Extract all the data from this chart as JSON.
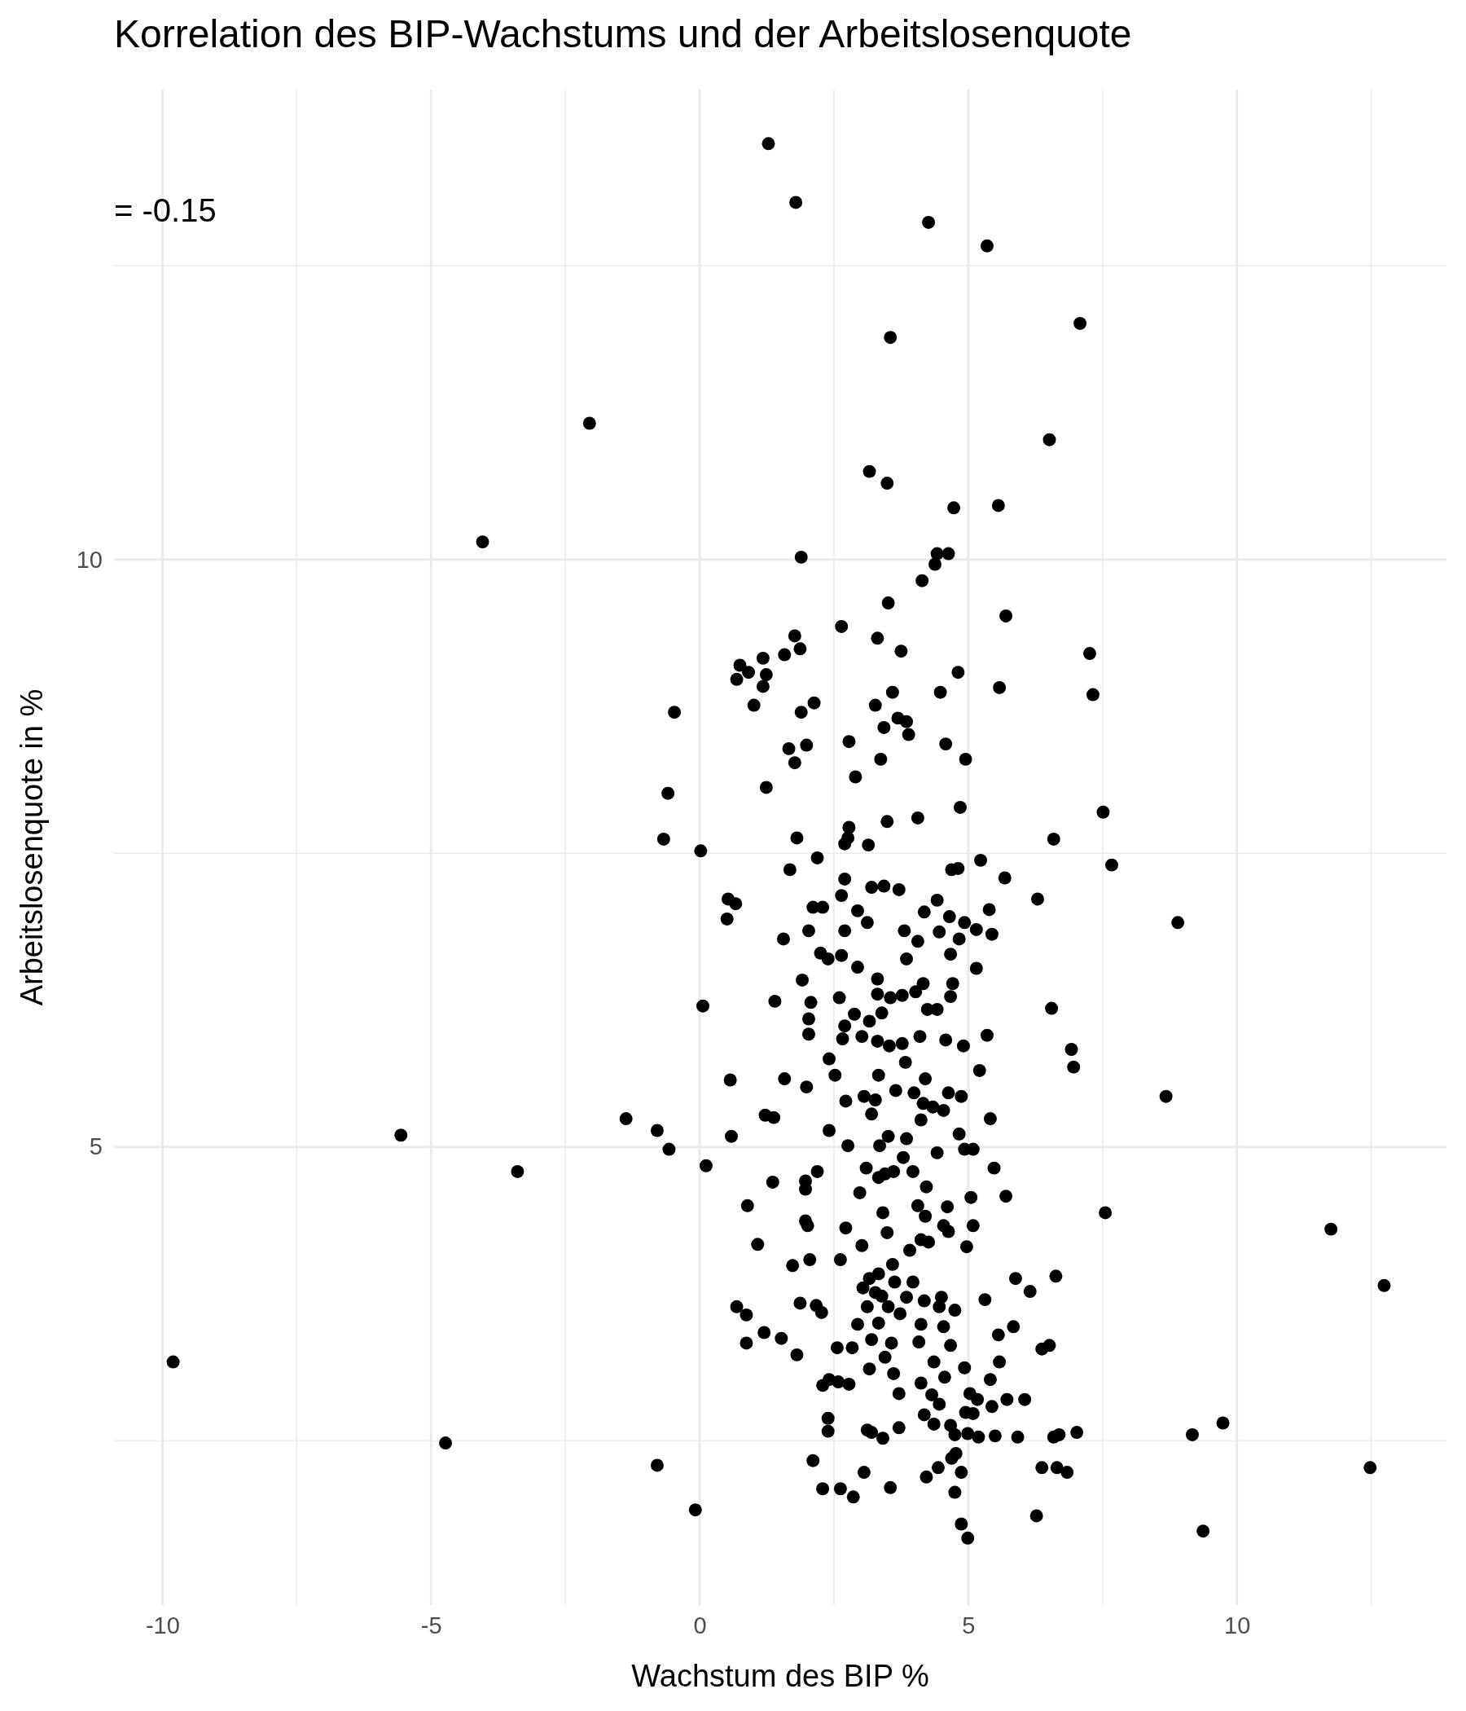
{
  "chart_data": {
    "type": "scatter",
    "title": "Korrelation des BIP-Wachstums und der Arbeitslosenquote",
    "xlabel": "Wachstum des BIP %",
    "ylabel": "Arbeitslosenquote in %",
    "annotations": [
      "= -0.15"
    ],
    "xlim": [
      -10.9,
      13.9
    ],
    "ylim": [
      1.1,
      14
    ],
    "xticks": [
      -10,
      {
        "value": -7.5,
        "label": null
      },
      -5,
      {
        "value": -2.5,
        "label": null
      },
      0,
      {
        "value": 2.5,
        "label": null
      },
      5,
      {
        "value": 7.5,
        "label": null
      },
      10,
      {
        "value": 12.5,
        "label": null
      }
    ],
    "yticks": [
      {
        "value": 2.5,
        "label": null
      },
      5,
      {
        "value": 7.5,
        "label": null
      },
      10,
      {
        "value": 12.5,
        "label": null
      }
    ],
    "grid": true,
    "marker": "circle",
    "series": [
      {
        "color": "#000000",
        "x": [
          1.28,
          1.79,
          4.26,
          5.35,
          7.08,
          3.55,
          -2.05,
          6.51,
          3.16,
          3.49,
          4.73,
          5.56,
          -4.04,
          1.89,
          4.42,
          4.63,
          4.38,
          4.14,
          3.51,
          5.7,
          2.64,
          1.77,
          3.31,
          3.75,
          7.26,
          0.75,
          1.18,
          1.58,
          1.87,
          0.91,
          0.69,
          1.24,
          4.81,
          5.58,
          7.32,
          4.48,
          3.59,
          1.18,
          1.01,
          2.13,
          3.27,
          -0.47,
          1.89,
          3.69,
          3.85,
          3.43,
          3.89,
          2.78,
          4.58,
          1.66,
          1.99,
          3.37,
          4.95,
          1.77,
          2.9,
          -0.59,
          1.24,
          4.85,
          7.51,
          4.06,
          3.49,
          2.78,
          1.81,
          -0.67,
          2.76,
          2.7,
          6.59,
          3.14,
          0.02,
          2.19,
          7.67,
          5.23,
          1.68,
          4.81,
          4.69,
          2.7,
          5.68,
          3.2,
          3.43,
          3.71,
          0.53,
          0.67,
          6.29,
          2.64,
          2.11,
          2.29,
          2.94,
          4.18,
          4.42,
          5.39,
          4.65,
          0.51,
          3.12,
          8.9,
          4.93,
          5.15,
          5.44,
          3.81,
          2.7,
          2.03,
          4.46,
          1.56,
          4.83,
          4.06,
          2.25,
          2.39,
          2.64,
          3.85,
          4.67,
          2.94,
          5.15,
          1.91,
          3.31,
          4.16,
          4.71,
          4.02,
          3.31,
          3.55,
          3.77,
          4.42,
          4.24,
          4.67,
          1.4,
          2.07,
          2.6,
          0.06,
          6.55,
          3.39,
          2.88,
          2.03,
          3.16,
          2.7,
          2.03,
          2.66,
          3.02,
          4.1,
          4.58,
          5.35,
          3.31,
          3.53,
          3.77,
          4.91,
          6.92,
          2.41,
          3.83,
          6.96,
          5.21,
          2.52,
          3.33,
          0.57,
          1.58,
          4.2,
          3.65,
          1.99,
          3.06,
          3.99,
          4.63,
          4.87,
          8.68,
          3.27,
          2.72,
          4.16,
          4.34,
          4.54,
          3.2,
          -1.37,
          1.22,
          1.38,
          5.41,
          4.12,
          -0.79,
          2.41,
          4.83,
          -5.56,
          0.59,
          3.51,
          3.85,
          2.76,
          -0.57,
          3.35,
          4.42,
          4.93,
          5.09,
          3.79,
          0.12,
          3.1,
          5.48,
          -3.39,
          3.97,
          3.61,
          2.19,
          3.33,
          3.45,
          1.97,
          1.36,
          1.97,
          4.22,
          2.98,
          5.05,
          5.7,
          0.89,
          4.06,
          4.61,
          3.41,
          4.2,
          7.55,
          1.97,
          2.01,
          5.09,
          2.72,
          4.54,
          11.75,
          3.49,
          4.63,
          4.12,
          1.08,
          4.26,
          4.97,
          3.02,
          3.91,
          2.05,
          2.62,
          1.73,
          3.59,
          3.33,
          3.16,
          5.88,
          6.63,
          3.63,
          3.97,
          12.74,
          3.04,
          6.15,
          3.27,
          3.39,
          3.85,
          4.18,
          4.5,
          5.31,
          0.69,
          1.87,
          2.17,
          3.12,
          3.51,
          4.46,
          4.75,
          0.87,
          2.27,
          3.73,
          3.33,
          2.94,
          4.12,
          4.54,
          5.84,
          5.56,
          1.2,
          1.52,
          0.87,
          3.2,
          3.57,
          4.08,
          4.67,
          2.56,
          2.84,
          6.37,
          6.51,
          1.81,
          3.45,
          4.36,
          5.58,
          -9.8,
          3.16,
          3.61,
          4.93,
          4.56,
          2.41,
          2.29,
          2.58,
          2.78,
          5.41,
          4.12,
          3.71,
          5.03,
          4.32,
          5.17,
          5.72,
          6.05,
          4.46,
          5.44,
          4.95,
          4.18,
          5.09,
          2.39,
          9.74,
          4.36,
          4.67,
          2.39,
          3.12,
          3.71,
          3.2,
          4.75,
          4.99,
          5.19,
          5.5,
          5.92,
          6.59,
          6.69,
          7.02,
          9.17,
          -4.73,
          3.41,
          4.77,
          4.69,
          2.11,
          -0.79,
          12.48,
          6.37,
          6.65,
          6.84,
          4.44,
          3.06,
          4.22,
          4.87,
          3.55,
          2.29,
          2.62,
          2.86,
          4.75,
          -0.08,
          6.27,
          9.37,
          4.87,
          4.99
        ],
        "values": [
          13.54,
          13.04,
          12.87,
          12.67,
          12.01,
          11.89,
          11.16,
          11.02,
          10.75,
          10.65,
          10.44,
          10.46,
          10.15,
          10.02,
          10.05,
          10.05,
          9.96,
          9.82,
          9.63,
          9.52,
          9.43,
          9.35,
          9.33,
          9.22,
          9.2,
          9.1,
          9.16,
          9.19,
          9.24,
          9.04,
          8.98,
          9.02,
          9.04,
          8.91,
          8.85,
          8.87,
          8.87,
          8.92,
          8.76,
          8.78,
          8.76,
          8.7,
          8.7,
          8.65,
          8.62,
          8.57,
          8.51,
          8.45,
          8.43,
          8.39,
          8.42,
          8.3,
          8.3,
          8.27,
          8.15,
          8.01,
          8.06,
          7.89,
          7.85,
          7.8,
          7.77,
          7.72,
          7.63,
          7.62,
          7.63,
          7.58,
          7.62,
          7.57,
          7.52,
          7.46,
          7.4,
          7.44,
          7.36,
          7.37,
          7.36,
          7.28,
          7.29,
          7.21,
          7.22,
          7.19,
          7.11,
          7.07,
          7.11,
          7.14,
          7.04,
          7.04,
          7.01,
          7.0,
          7.1,
          7.02,
          6.96,
          6.94,
          6.91,
          6.91,
          6.91,
          6.85,
          6.81,
          6.84,
          6.84,
          6.84,
          6.83,
          6.77,
          6.77,
          6.75,
          6.65,
          6.6,
          6.63,
          6.6,
          6.64,
          6.53,
          6.52,
          6.42,
          6.43,
          6.39,
          6.39,
          6.32,
          6.3,
          6.27,
          6.29,
          6.17,
          6.17,
          6.28,
          6.24,
          6.23,
          6.27,
          6.2,
          6.18,
          6.14,
          6.13,
          6.09,
          6.07,
          6.03,
          5.96,
          5.92,
          5.94,
          5.94,
          5.91,
          5.95,
          5.9,
          5.86,
          5.88,
          5.86,
          5.83,
          5.75,
          5.72,
          5.68,
          5.65,
          5.61,
          5.61,
          5.57,
          5.58,
          5.58,
          5.48,
          5.51,
          5.43,
          5.46,
          5.46,
          5.43,
          5.43,
          5.4,
          5.39,
          5.37,
          5.34,
          5.31,
          5.28,
          5.24,
          5.27,
          5.25,
          5.24,
          5.23,
          5.14,
          5.14,
          5.11,
          5.1,
          5.09,
          5.09,
          5.07,
          5.01,
          4.98,
          5.01,
          4.95,
          4.98,
          4.98,
          4.91,
          4.84,
          4.82,
          4.82,
          4.79,
          4.79,
          4.79,
          4.79,
          4.74,
          4.77,
          4.71,
          4.7,
          4.64,
          4.66,
          4.61,
          4.57,
          4.58,
          4.5,
          4.5,
          4.49,
          4.44,
          4.41,
          4.44,
          4.37,
          4.33,
          4.33,
          4.31,
          4.33,
          4.3,
          4.27,
          4.28,
          4.21,
          4.17,
          4.19,
          4.15,
          4.16,
          4.12,
          4.04,
          4.04,
          3.99,
          4.0,
          3.92,
          3.88,
          3.88,
          3.9,
          3.85,
          3.85,
          3.82,
          3.8,
          3.77,
          3.76,
          3.73,
          3.72,
          3.69,
          3.72,
          3.7,
          3.64,
          3.67,
          3.65,
          3.64,
          3.64,
          3.64,
          3.61,
          3.57,
          3.59,
          3.58,
          3.5,
          3.49,
          3.49,
          3.47,
          3.47,
          3.4,
          3.42,
          3.37,
          3.33,
          3.36,
          3.33,
          3.34,
          3.31,
          3.29,
          3.29,
          3.28,
          3.31,
          3.23,
          3.21,
          3.17,
          3.17,
          3.17,
          3.11,
          3.07,
          3.12,
          3.04,
          3.02,
          2.97,
          3.0,
          2.98,
          3.02,
          2.99,
          2.9,
          2.9,
          2.89,
          2.85,
          2.85,
          2.85,
          2.81,
          2.79,
          2.74,
          2.72,
          2.73,
          2.69,
          2.65,
          2.64,
          2.63,
          2.58,
          2.59,
          2.61,
          2.57,
          2.55,
          2.56,
          2.53,
          2.54,
          2.53,
          2.53,
          2.55,
          2.57,
          2.55,
          2.48,
          2.52,
          2.39,
          2.35,
          2.33,
          2.29,
          2.27,
          2.27,
          2.27,
          2.23,
          2.27,
          2.23,
          2.19,
          2.23,
          2.1,
          2.09,
          2.09,
          2.02,
          2.06,
          1.91,
          1.86,
          1.73,
          1.79,
          1.67
        ]
      }
    ]
  }
}
